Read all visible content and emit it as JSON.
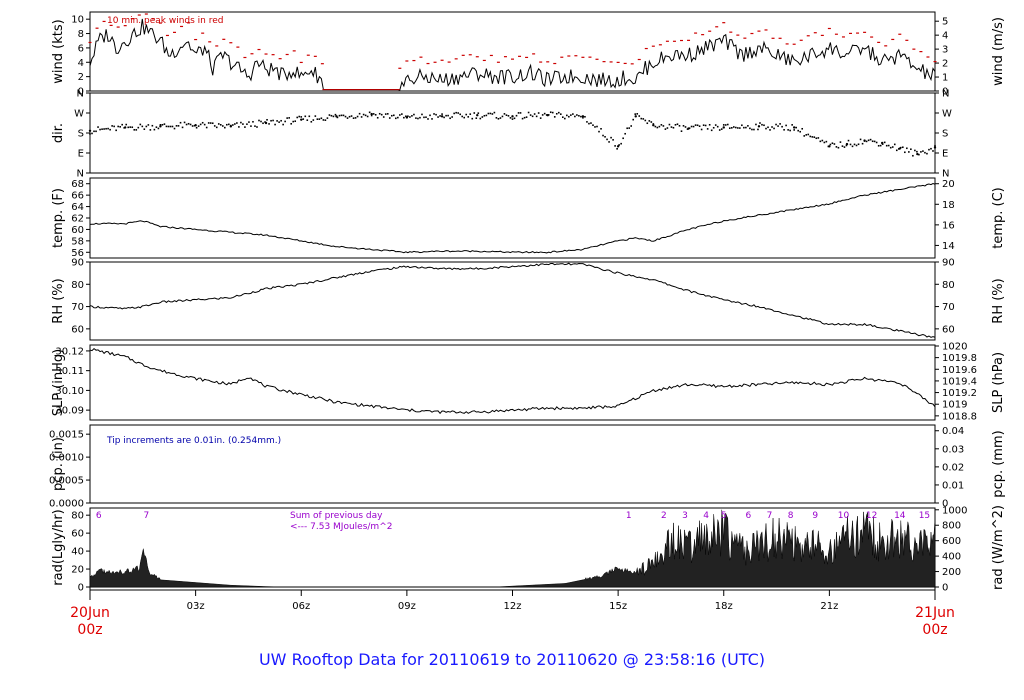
{
  "footer_title": "UW Rooftop Data for 20110619  to  20110620 @ 23:58:16  (UTC)",
  "colors": {
    "series": "#000000",
    "peak": "#cc0000",
    "tip_note": "#0000aa",
    "rad_note": "#9900cc",
    "date": "#dd0000",
    "footer": "#1a1aff"
  },
  "x_axis": {
    "range_hours": [
      0,
      24
    ],
    "ticks": [
      {
        "hour": 3,
        "label": "03z"
      },
      {
        "hour": 6,
        "label": "06z"
      },
      {
        "hour": 9,
        "label": "09z"
      },
      {
        "hour": 12,
        "label": "12z"
      },
      {
        "hour": 15,
        "label": "15z"
      },
      {
        "hour": 18,
        "label": "18z"
      },
      {
        "hour": 21,
        "label": "21z"
      }
    ],
    "start_date": "20Jun",
    "start_time": "00z",
    "end_date": "21Jun",
    "end_time": "00z"
  },
  "annotations": {
    "wind_note": "10 min. peak winds in red",
    "pcp_note": "Tip increments are 0.01in. (0.254mm.)",
    "rad_note_line1": "Sum of previous day",
    "rad_note_line2": "<--- 7.53 MJoules/m^2"
  },
  "chart_data": [
    {
      "id": "wind",
      "type": "line",
      "ylabel": "wind (kts)",
      "ylabel_right": "wind (m/s)",
      "ylim": [
        0,
        11
      ],
      "yticks_left": [
        {
          "v": 0,
          "label": "0"
        },
        {
          "v": 2,
          "label": "2"
        },
        {
          "v": 4,
          "label": "4"
        },
        {
          "v": 6,
          "label": "6"
        },
        {
          "v": 8,
          "label": "8"
        },
        {
          "v": 10,
          "label": "10"
        }
      ],
      "yticks_right": [
        {
          "v": 0,
          "label": "0"
        },
        {
          "v": 1.944,
          "label": "1"
        },
        {
          "v": 3.888,
          "label": "2"
        },
        {
          "v": 5.832,
          "label": "3"
        },
        {
          "v": 7.776,
          "label": "4"
        },
        {
          "v": 9.72,
          "label": "5"
        }
      ],
      "x": [
        0,
        0.25,
        0.5,
        0.75,
        1,
        1.25,
        1.5,
        1.75,
        2,
        2.25,
        2.5,
        2.75,
        3,
        3.25,
        3.5,
        3.75,
        4,
        4.25,
        4.5,
        4.75,
        5,
        5.25,
        5.5,
        5.75,
        6,
        6.25,
        6.5,
        7,
        8,
        8.75,
        9,
        9.5,
        10,
        10.5,
        11,
        11.5,
        12,
        12.5,
        13,
        13.5,
        14,
        14.5,
        15,
        15.25,
        15.5,
        15.75,
        16,
        16.5,
        17,
        17.5,
        18,
        18.5,
        19,
        19.5,
        20,
        20.5,
        21,
        21.5,
        22,
        22.5,
        23,
        23.5,
        24
      ],
      "values": [
        4,
        7,
        8,
        6,
        7,
        8,
        9,
        8,
        7,
        5,
        6,
        7,
        5,
        6,
        3,
        5,
        4,
        3,
        2,
        4,
        3,
        3,
        2,
        3,
        2,
        3,
        2,
        0.2,
        0.2,
        0.2,
        1.5,
        2,
        1.5,
        2,
        2.5,
        2,
        2,
        2.5,
        1.5,
        2,
        2,
        1.5,
        1.5,
        2,
        1.5,
        3,
        4,
        5,
        5,
        6,
        7,
        5,
        6,
        5,
        4,
        5,
        6,
        5,
        6,
        4,
        5,
        3,
        2
      ]
    },
    {
      "id": "dir",
      "type": "scatter",
      "ylabel": "dir.",
      "ylim": [
        0,
        360
      ],
      "yticks_left": [
        {
          "v": 0,
          "label": "N"
        },
        {
          "v": 90,
          "label": "E"
        },
        {
          "v": 180,
          "label": "S"
        },
        {
          "v": 270,
          "label": "W"
        },
        {
          "v": 360,
          "label": "N"
        }
      ],
      "yticks_right": [
        {
          "v": 0,
          "label": "N"
        },
        {
          "v": 90,
          "label": "E"
        },
        {
          "v": 180,
          "label": "S"
        },
        {
          "v": 270,
          "label": "W"
        },
        {
          "v": 360,
          "label": "N"
        }
      ],
      "x": [
        0,
        1,
        2,
        3,
        4,
        5,
        6,
        7,
        8,
        9,
        10,
        11,
        12,
        13,
        14,
        15,
        15.5,
        16,
        17,
        18,
        19,
        20,
        21,
        21.5,
        22,
        22.5,
        23,
        23.5,
        24
      ],
      "values": [
        190,
        205,
        210,
        215,
        210,
        225,
        240,
        255,
        265,
        250,
        255,
        260,
        255,
        260,
        255,
        120,
        255,
        215,
        200,
        205,
        210,
        205,
        120,
        130,
        145,
        135,
        110,
        85,
        115
      ]
    },
    {
      "id": "temp",
      "type": "line",
      "ylabel": "temp. (F)",
      "ylabel_right": "temp. (C)",
      "ylim": [
        55,
        69
      ],
      "yticks_left": [
        {
          "v": 56,
          "label": "56"
        },
        {
          "v": 58,
          "label": "58"
        },
        {
          "v": 60,
          "label": "60"
        },
        {
          "v": 62,
          "label": "62"
        },
        {
          "v": 64,
          "label": "64"
        },
        {
          "v": 66,
          "label": "66"
        },
        {
          "v": 68,
          "label": "68"
        }
      ],
      "yticks_right": [
        {
          "v": 57.2,
          "label": "14"
        },
        {
          "v": 60.8,
          "label": "16"
        },
        {
          "v": 64.4,
          "label": "18"
        },
        {
          "v": 68,
          "label": "20"
        }
      ],
      "x": [
        0,
        1,
        1.5,
        2,
        3,
        4,
        5,
        6,
        7,
        8,
        9,
        10,
        11,
        12,
        13,
        14,
        15,
        15.5,
        16,
        17,
        18,
        19,
        20,
        21,
        22,
        23,
        24
      ],
      "values": [
        61,
        61,
        61.5,
        60.5,
        60,
        59.5,
        59,
        58,
        57,
        56.5,
        56,
        56.2,
        56.2,
        56,
        56,
        56.5,
        58,
        58.5,
        58,
        60,
        61.5,
        62.5,
        63.5,
        64.5,
        66,
        67,
        68
      ]
    },
    {
      "id": "rh",
      "type": "line",
      "ylabel": "RH (%)",
      "ylabel_right": "RH (%)",
      "ylim": [
        55,
        90
      ],
      "yticks_left": [
        {
          "v": 60,
          "label": "60"
        },
        {
          "v": 70,
          "label": "70"
        },
        {
          "v": 80,
          "label": "80"
        },
        {
          "v": 90,
          "label": "90"
        }
      ],
      "yticks_right": [
        {
          "v": 60,
          "label": "60"
        },
        {
          "v": 70,
          "label": "70"
        },
        {
          "v": 80,
          "label": "80"
        },
        {
          "v": 90,
          "label": "90"
        }
      ],
      "x": [
        0,
        1,
        1.5,
        2,
        3,
        4,
        5,
        6,
        7,
        8,
        9,
        10,
        11,
        12,
        13,
        14,
        15,
        16,
        17,
        18,
        19,
        20,
        21,
        22,
        23,
        24
      ],
      "values": [
        70,
        69,
        70,
        72,
        73,
        74,
        78,
        80,
        83,
        86,
        88,
        87,
        87,
        88,
        89,
        89,
        85,
        82,
        77,
        73,
        70,
        66,
        62,
        62,
        59,
        56
      ]
    },
    {
      "id": "slp",
      "type": "line",
      "ylabel": "SLP (inHg)",
      "ylabel_right": "SLP (hPa)",
      "ylim": [
        30.085,
        30.123
      ],
      "yticks_left": [
        {
          "v": 30.09,
          "label": "30.09"
        },
        {
          "v": 30.1,
          "label": "30.10"
        },
        {
          "v": 30.11,
          "label": "30.11"
        },
        {
          "v": 30.12,
          "label": "30.12"
        }
      ],
      "yticks_right": [
        {
          "v": 30.0871,
          "label": "1018.8"
        },
        {
          "v": 30.093,
          "label": "1019"
        },
        {
          "v": 30.0989,
          "label": "1019.2"
        },
        {
          "v": 30.1048,
          "label": "1019.4"
        },
        {
          "v": 30.1107,
          "label": "1019.6"
        },
        {
          "v": 30.1166,
          "label": "1019.8"
        },
        {
          "v": 30.1225,
          "label": "1020"
        }
      ],
      "x": [
        0,
        0.5,
        1,
        1.5,
        2,
        3,
        4,
        4.5,
        5,
        6,
        7,
        8,
        9,
        10,
        11,
        12,
        13,
        14,
        15,
        16,
        17,
        18,
        19,
        20,
        21,
        22,
        23,
        23.5,
        24
      ],
      "values": [
        30.121,
        30.119,
        30.117,
        30.113,
        30.11,
        30.106,
        30.103,
        30.107,
        30.102,
        30.098,
        30.094,
        30.092,
        30.09,
        30.089,
        30.089,
        30.09,
        30.091,
        30.091,
        30.092,
        30.1,
        30.103,
        30.102,
        30.103,
        30.104,
        30.103,
        30.106,
        30.104,
        30.098,
        30.092
      ]
    },
    {
      "id": "pcp",
      "type": "line",
      "ylabel": "pcp. (in)",
      "ylabel_right": "pcp. (mm)",
      "ylim": [
        0,
        0.0017
      ],
      "yticks_left": [
        {
          "v": 0,
          "label": "0.0000"
        },
        {
          "v": 0.0005,
          "label": "0.0005"
        },
        {
          "v": 0.001,
          "label": "0.0010"
        },
        {
          "v": 0.0015,
          "label": "0.0015"
        }
      ],
      "yticks_right": [
        {
          "v": 0,
          "label": "0"
        },
        {
          "v": 0.0003937,
          "label": "0.01"
        },
        {
          "v": 0.0007874,
          "label": "0.02"
        },
        {
          "v": 0.0011811,
          "label": "0.03"
        },
        {
          "v": 0.0015748,
          "label": "0.04"
        }
      ],
      "x": [
        0,
        24
      ],
      "values": [
        0,
        0
      ]
    },
    {
      "id": "rad",
      "type": "area",
      "ylabel": "rad(Lgly/hr)",
      "ylabel_right": "rad (W/m^2)",
      "ylim": [
        0,
        88
      ],
      "yticks_left": [
        {
          "v": 0,
          "label": "0"
        },
        {
          "v": 20,
          "label": "20"
        },
        {
          "v": 40,
          "label": "40"
        },
        {
          "v": 60,
          "label": "60"
        },
        {
          "v": 80,
          "label": "80"
        }
      ],
      "yticks_right": [
        {
          "v": 0,
          "label": "0"
        },
        {
          "v": 17.2,
          "label": "200"
        },
        {
          "v": 34.4,
          "label": "400"
        },
        {
          "v": 51.6,
          "label": "600"
        },
        {
          "v": 68.8,
          "label": "800"
        },
        {
          "v": 86,
          "label": "1000"
        }
      ],
      "x": [
        0,
        0.3,
        0.6,
        1,
        1.4,
        1.5,
        1.7,
        2,
        3,
        4,
        5,
        5.5,
        11.5,
        12.5,
        13.5,
        14,
        14.5,
        15,
        15.5,
        16,
        16.5,
        17,
        17.5,
        18,
        18.5,
        19,
        19.5,
        20,
        20.5,
        21,
        21.5,
        22,
        22.5,
        23,
        23.5,
        24
      ],
      "values": [
        10,
        18,
        15,
        17,
        20,
        38,
        15,
        8,
        5,
        2,
        0.5,
        0,
        0,
        2,
        4,
        8,
        12,
        20,
        15,
        25,
        50,
        45,
        55,
        60,
        40,
        45,
        55,
        50,
        45,
        40,
        55,
        60,
        50,
        55,
        45,
        55
      ]
    }
  ],
  "day_numbers": [
    {
      "hour": 0.25,
      "label": "6"
    },
    {
      "hour": 1.6,
      "label": "7"
    },
    {
      "hour": 15.3,
      "label": "1"
    },
    {
      "hour": 16.3,
      "label": "2"
    },
    {
      "hour": 16.9,
      "label": "3"
    },
    {
      "hour": 17.5,
      "label": "4"
    },
    {
      "hour": 18.0,
      "label": "5"
    },
    {
      "hour": 18.7,
      "label": "6"
    },
    {
      "hour": 19.3,
      "label": "7"
    },
    {
      "hour": 19.9,
      "label": "8"
    },
    {
      "hour": 20.6,
      "label": "9"
    },
    {
      "hour": 21.4,
      "label": "10"
    },
    {
      "hour": 22.2,
      "label": "12"
    },
    {
      "hour": 23.0,
      "label": "14"
    },
    {
      "hour": 23.7,
      "label": "15"
    }
  ]
}
